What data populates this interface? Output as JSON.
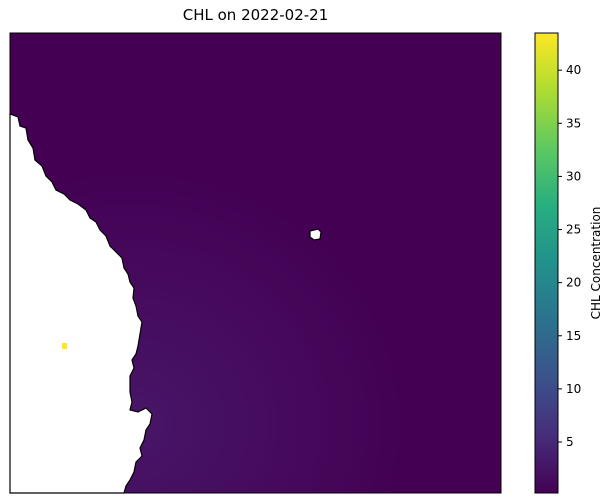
{
  "chart_data": {
    "type": "heatmap",
    "title": "CHL on 2022-02-21",
    "xlabel": "",
    "ylabel": "",
    "colorbar": {
      "label": "CHL Concentration",
      "colormap": "viridis",
      "range": [
        0.2,
        43.5
      ],
      "ticks": [
        5,
        10,
        15,
        20,
        25,
        30,
        35,
        40
      ]
    },
    "values": {
      "ocean_typical": 0.8,
      "nearshore_typical": 2.0,
      "inland_anomaly_max": 43.5
    },
    "land_color": "#ffffff",
    "coastline_color": "#000000"
  }
}
